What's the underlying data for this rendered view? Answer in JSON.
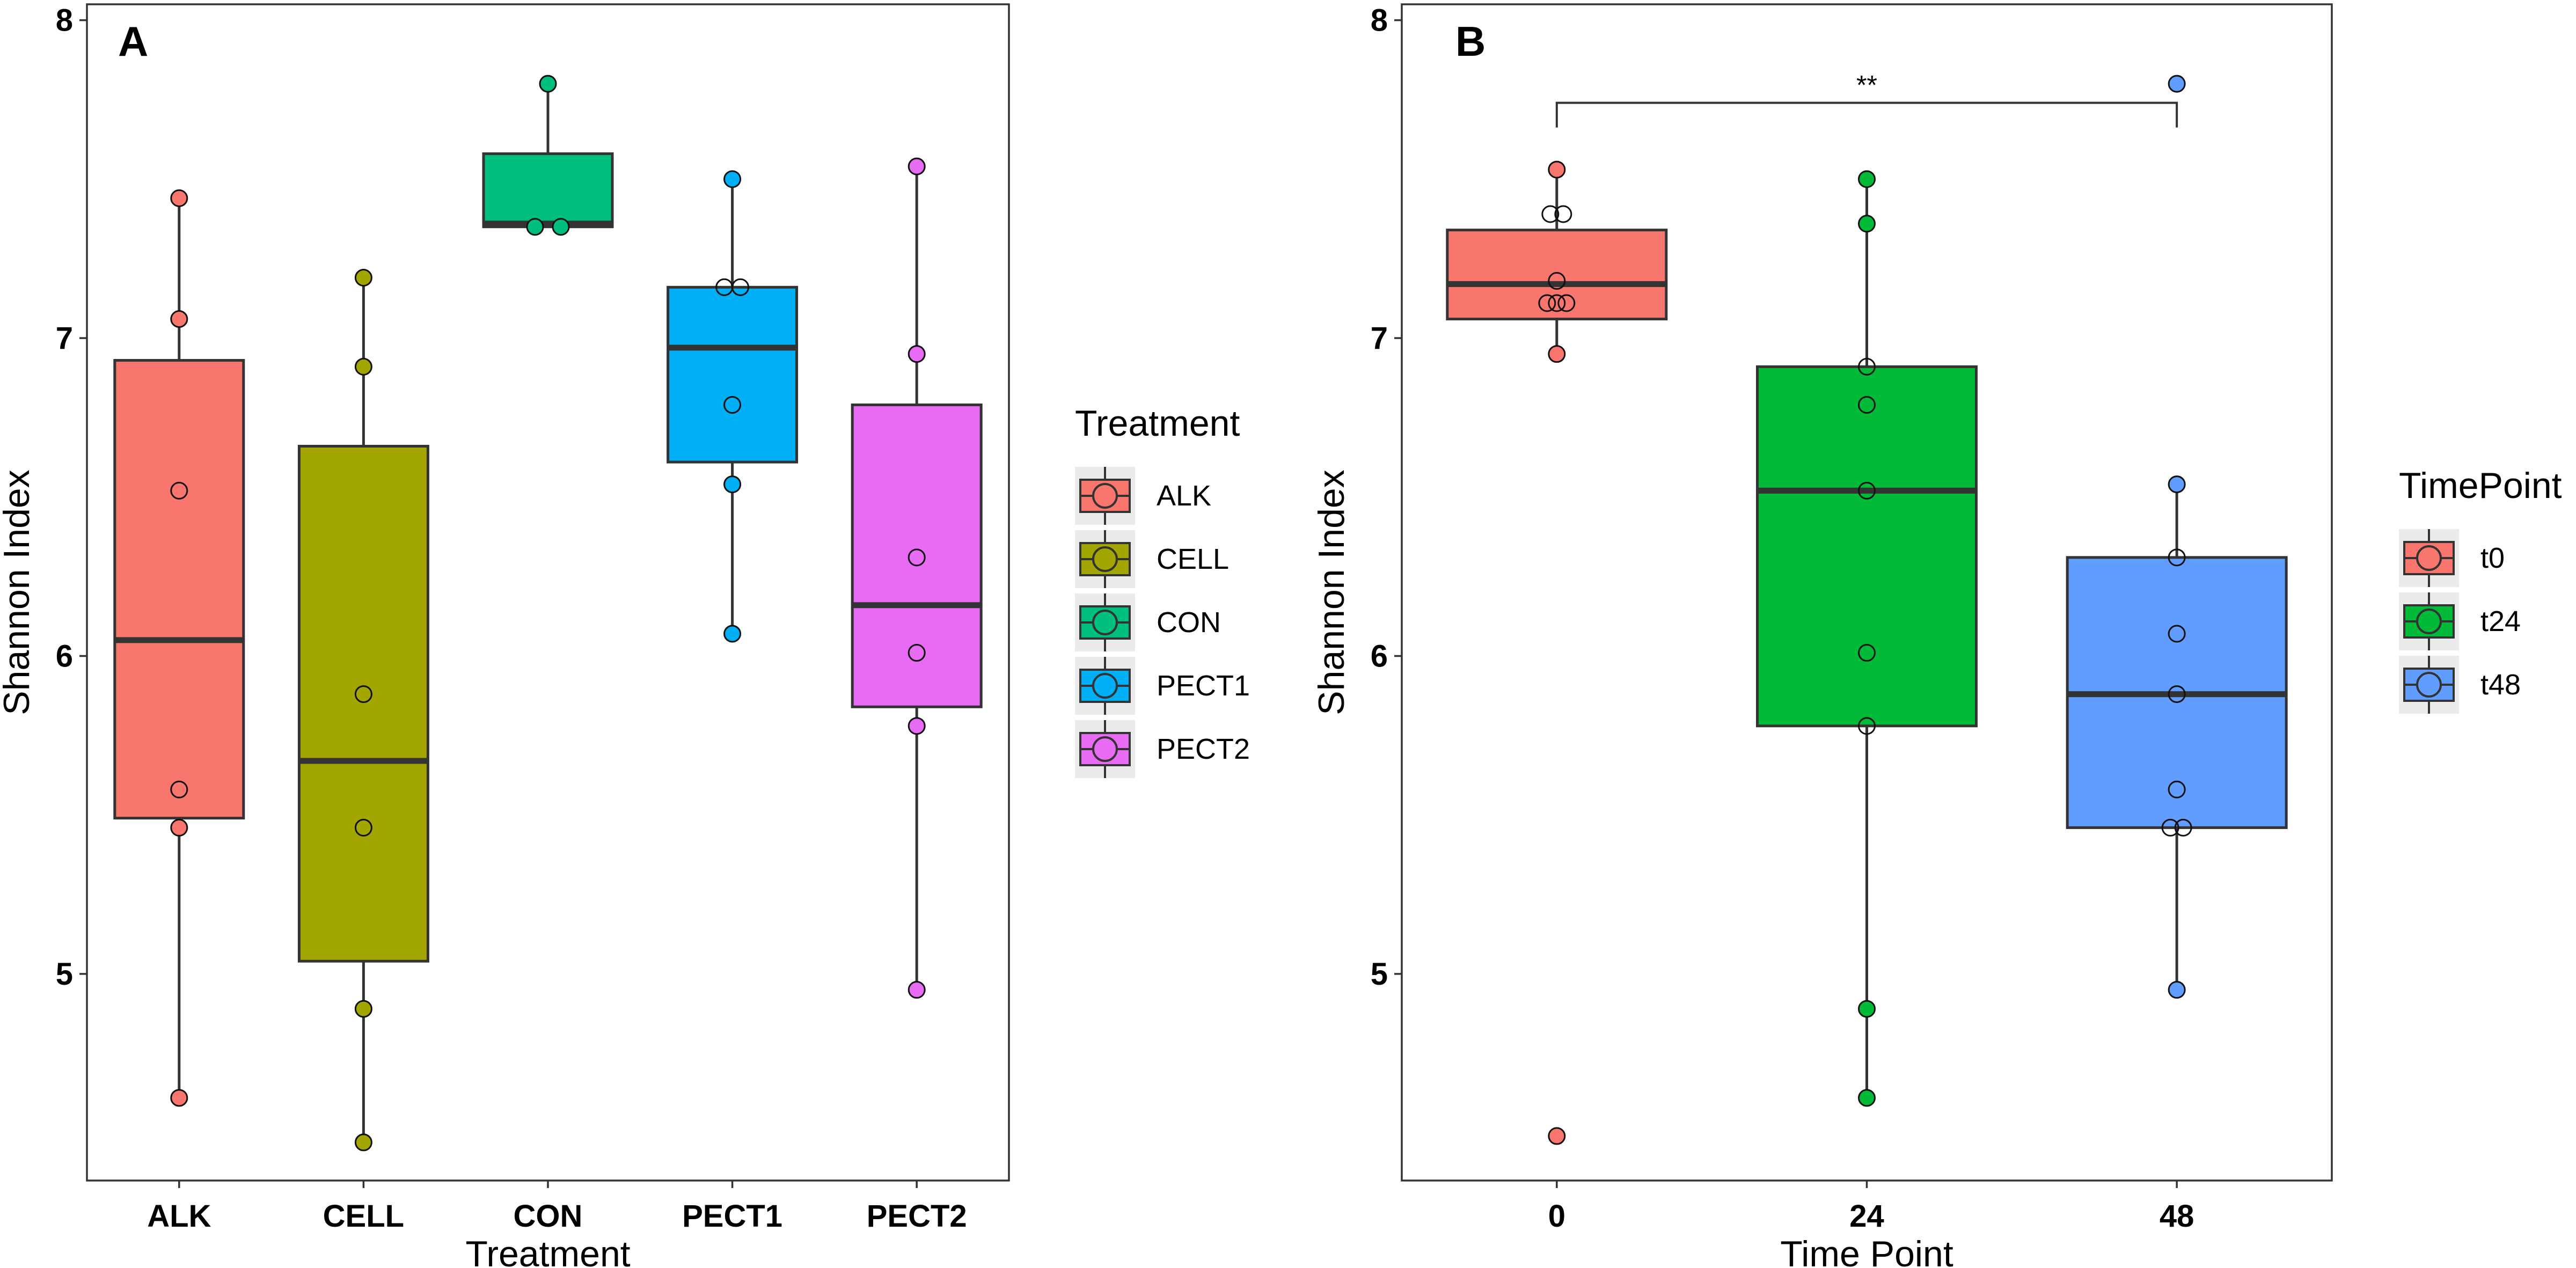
{
  "chart_data": [
    {
      "type": "box",
      "panel_label": "A",
      "xlabel": "Treatment",
      "ylabel": "Shannon Index",
      "ylim": [
        4.35,
        8.05
      ],
      "yticks": [
        5,
        6,
        7,
        8
      ],
      "categories": [
        "ALK",
        "CELL",
        "CON",
        "PECT1",
        "PECT2"
      ],
      "colors": [
        "#F8766D",
        "#A3A500",
        "#00BF7D",
        "#00B0F6",
        "#E76BF3"
      ],
      "boxes": [
        {
          "q1": 5.49,
          "median": 6.05,
          "q3": 6.93,
          "whisker_low": 4.61,
          "whisker_high": 7.44,
          "points": [
            7.44,
            7.06,
            6.52,
            5.58,
            5.46,
            4.61
          ],
          "hollow": [
            false,
            false,
            true,
            true,
            false,
            false
          ]
        },
        {
          "q1": 5.04,
          "median": 5.67,
          "q3": 6.66,
          "whisker_low": 4.47,
          "whisker_high": 7.19,
          "points": [
            7.19,
            6.91,
            5.88,
            5.46,
            4.89,
            4.47
          ],
          "hollow": [
            false,
            false,
            true,
            true,
            false,
            false
          ]
        },
        {
          "q1": 7.35,
          "median": 7.36,
          "q3": 7.58,
          "whisker_low": 7.35,
          "whisker_high": 7.8,
          "points": [
            7.8,
            7.35,
            7.35
          ],
          "hollow": [
            false,
            false,
            false
          ],
          "dx": [
            0,
            -8,
            8
          ]
        },
        {
          "q1": 6.61,
          "median": 6.97,
          "q3": 7.16,
          "whisker_low": 6.07,
          "whisker_high": 7.5,
          "points": [
            7.5,
            7.16,
            7.16,
            6.79,
            6.54,
            6.07
          ],
          "hollow": [
            false,
            true,
            true,
            true,
            false,
            false
          ],
          "dx": [
            0,
            -5,
            5,
            0,
            0,
            0
          ]
        },
        {
          "q1": 5.84,
          "median": 6.16,
          "q3": 6.79,
          "whisker_low": 4.95,
          "whisker_high": 7.54,
          "points": [
            7.54,
            6.95,
            6.31,
            6.01,
            5.78,
            4.95
          ],
          "hollow": [
            false,
            false,
            true,
            true,
            false,
            false
          ]
        }
      ],
      "legend": {
        "title": "Treatment",
        "position": "right",
        "entries": [
          "ALK",
          "CELL",
          "CON",
          "PECT1",
          "PECT2"
        ]
      }
    },
    {
      "type": "box",
      "panel_label": "B",
      "xlabel": "Time Point",
      "ylabel": "Shannon Index",
      "ylim": [
        4.35,
        8.05
      ],
      "yticks": [
        5,
        6,
        7,
        8
      ],
      "categories": [
        "0",
        "24",
        "48"
      ],
      "colors": [
        "#F8766D",
        "#00BA38",
        "#619CFF"
      ],
      "boxes": [
        {
          "q1": 7.06,
          "median": 7.17,
          "q3": 7.34,
          "whisker_low": 6.95,
          "whisker_high": 7.53,
          "points": [
            7.53,
            7.39,
            7.39,
            7.18,
            7.11,
            7.11,
            7.11,
            6.95,
            4.49
          ],
          "hollow": [
            false,
            true,
            true,
            true,
            true,
            true,
            true,
            false,
            false
          ],
          "dx": [
            0,
            -4,
            4,
            0,
            -6,
            0,
            6,
            0,
            0
          ]
        },
        {
          "q1": 5.78,
          "median": 6.52,
          "q3": 6.91,
          "whisker_low": 4.61,
          "whisker_high": 7.5,
          "points": [
            7.5,
            7.36,
            6.91,
            6.79,
            6.52,
            6.01,
            5.78,
            4.89,
            4.61
          ],
          "hollow": [
            false,
            false,
            true,
            true,
            true,
            true,
            true,
            false,
            false
          ]
        },
        {
          "q1": 5.46,
          "median": 5.88,
          "q3": 6.31,
          "whisker_low": 4.95,
          "whisker_high": 6.54,
          "points": [
            7.8,
            6.54,
            6.31,
            6.07,
            5.88,
            5.58,
            5.46,
            5.46,
            4.95
          ],
          "hollow": [
            false,
            false,
            true,
            true,
            true,
            true,
            true,
            true,
            false
          ],
          "dx": [
            0,
            0,
            0,
            0,
            0,
            0,
            -4,
            4,
            0
          ]
        }
      ],
      "annotation": {
        "text": "**",
        "from": "0",
        "to": "48",
        "y": 7.74
      },
      "legend": {
        "title": "TimePoint",
        "position": "right",
        "entries": [
          "t0",
          "t24",
          "t48"
        ]
      }
    }
  ]
}
